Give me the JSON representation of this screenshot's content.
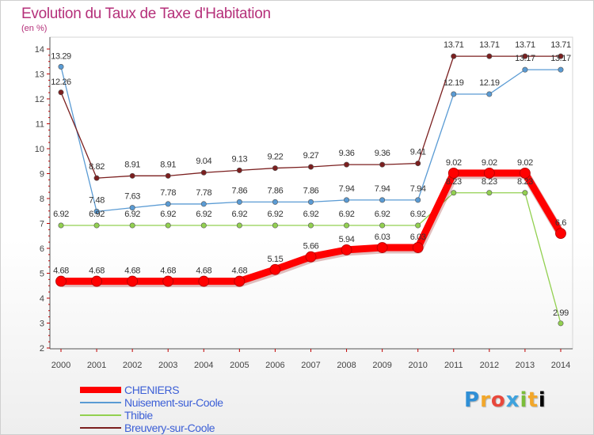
{
  "chart_data": {
    "type": "line",
    "title": "Evolution du Taux de Taxe d'Habitation",
    "subtitle": "(en %)",
    "categories": [
      "2000",
      "2001",
      "2002",
      "2003",
      "2004",
      "2005",
      "2006",
      "2007",
      "2008",
      "2009",
      "2010",
      "2011",
      "2012",
      "2013",
      "2014"
    ],
    "ylim": [
      2,
      14
    ],
    "yticks": [
      2,
      3,
      4,
      5,
      6,
      7,
      8,
      9,
      10,
      11,
      12,
      13,
      14
    ],
    "grid": false,
    "series": [
      {
        "name": "CHENIERS",
        "color": "#ff0000",
        "values": [
          4.68,
          4.68,
          4.68,
          4.68,
          4.68,
          4.68,
          5.15,
          5.66,
          5.94,
          6.03,
          6.03,
          9.02,
          9.02,
          9.02,
          6.6
        ],
        "labels": [
          "4.68",
          "4.68",
          "4.68",
          "4.68",
          "4.68",
          "4.68",
          "5.15",
          "5.66",
          "5.94",
          "6.03",
          "6.03",
          "9.02",
          "9.02",
          "9.02",
          "6.6"
        ]
      },
      {
        "name": "Nuisement-sur-Coole",
        "color": "#5a9bd4",
        "values": [
          13.29,
          7.48,
          7.63,
          7.78,
          7.78,
          7.86,
          7.86,
          7.86,
          7.94,
          7.94,
          7.94,
          12.19,
          12.19,
          13.17,
          13.17
        ],
        "labels": [
          "13.29",
          "7.48",
          "7.63",
          "7.78",
          "7.78",
          "7.86",
          "7.86",
          "7.86",
          "7.94",
          "7.94",
          "7.94",
          "12.19",
          "12.19",
          "13.17",
          "13.17"
        ]
      },
      {
        "name": "Thibie",
        "color": "#92d050",
        "values": [
          6.92,
          6.92,
          6.92,
          6.92,
          6.92,
          6.92,
          6.92,
          6.92,
          6.92,
          6.92,
          6.92,
          8.23,
          8.23,
          8.23,
          2.99
        ],
        "labels": [
          "6.92",
          "6.92",
          "6.92",
          "6.92",
          "6.92",
          "6.92",
          "6.92",
          "6.92",
          "6.92",
          "6.92",
          "6.92",
          "8.23",
          "8.23",
          "8.23",
          "2.99"
        ]
      },
      {
        "name": "Breuvery-sur-Coole",
        "color": "#7b1f1f",
        "values": [
          12.26,
          8.82,
          8.91,
          8.91,
          9.04,
          9.13,
          9.22,
          9.27,
          9.36,
          9.36,
          9.41,
          13.71,
          13.71,
          13.71,
          13.71
        ],
        "labels": [
          "12.26",
          "8.82",
          "8.91",
          "8.91",
          "9.04",
          "9.13",
          "9.22",
          "9.27",
          "9.36",
          "9.36",
          "9.41",
          "13.71",
          "13.71",
          "13.71",
          "13.71"
        ]
      }
    ],
    "legend_position": "bottom-left"
  },
  "logo": {
    "letters": [
      "P",
      "r",
      "o",
      "x",
      "i",
      "t",
      "i"
    ]
  }
}
